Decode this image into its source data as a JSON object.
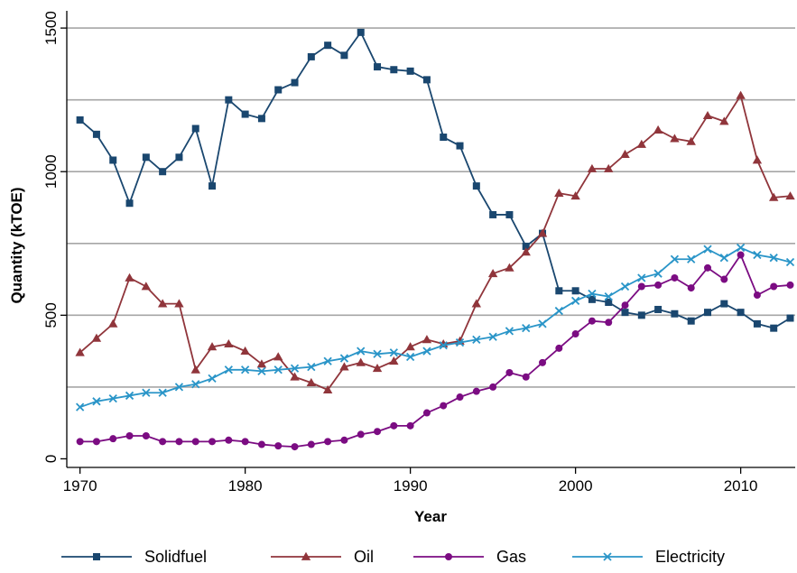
{
  "chart_data": {
    "type": "line",
    "title": "",
    "xlabel": "Year",
    "ylabel": "Quantity (kTOE)",
    "xlim": [
      1969.2,
      2013.3
    ],
    "ylim": [
      -30,
      1560
    ],
    "xticks": [
      1970,
      1980,
      1990,
      2000,
      2010
    ],
    "yticks": [
      0,
      500,
      1000,
      1500
    ],
    "gridlines_y": [
      250,
      500,
      750,
      1000,
      1250,
      1500
    ],
    "grid": true,
    "legend_position": "bottom",
    "x": [
      1970,
      1971,
      1972,
      1973,
      1974,
      1975,
      1976,
      1977,
      1978,
      1979,
      1980,
      1981,
      1982,
      1983,
      1984,
      1985,
      1986,
      1987,
      1988,
      1989,
      1990,
      1991,
      1992,
      1993,
      1994,
      1995,
      1996,
      1997,
      1998,
      1999,
      2000,
      2001,
      2002,
      2003,
      2004,
      2005,
      2006,
      2007,
      2008,
      2009,
      2010,
      2011,
      2012,
      2013
    ],
    "series": [
      {
        "name": "Solidfuel",
        "color": "#1a476f",
        "marker": "square",
        "values": [
          1180,
          1130,
          1040,
          890,
          1050,
          1000,
          1050,
          1150,
          950,
          1250,
          1200,
          1185,
          1285,
          1310,
          1400,
          1440,
          1405,
          1485,
          1365,
          1355,
          1350,
          1320,
          1120,
          1090,
          950,
          850,
          850,
          740,
          785,
          585,
          585,
          555,
          545,
          510,
          500,
          520,
          505,
          480,
          510,
          540,
          510,
          470,
          455,
          490
        ]
      },
      {
        "name": "Oil",
        "color": "#90353b",
        "marker": "triangle",
        "values": [
          370,
          420,
          470,
          630,
          600,
          540,
          540,
          310,
          390,
          400,
          375,
          330,
          355,
          285,
          265,
          240,
          320,
          335,
          315,
          340,
          390,
          415,
          400,
          410,
          540,
          645,
          665,
          720,
          785,
          925,
          915,
          1010,
          1010,
          1060,
          1095,
          1145,
          1115,
          1105,
          1195,
          1175,
          1265,
          1040,
          910,
          915
        ]
      },
      {
        "name": "Gas",
        "color": "#7b0c82",
        "marker": "circle",
        "values": [
          60,
          60,
          70,
          80,
          80,
          60,
          60,
          60,
          60,
          65,
          60,
          50,
          45,
          42,
          50,
          60,
          65,
          85,
          95,
          115,
          115,
          160,
          185,
          215,
          235,
          250,
          300,
          285,
          335,
          385,
          435,
          480,
          475,
          535,
          600,
          605,
          630,
          595,
          665,
          625,
          710,
          570,
          600,
          605
        ]
      },
      {
        "name": "Electricity",
        "color": "#2a95c8",
        "marker": "cross",
        "values": [
          180,
          200,
          210,
          220,
          230,
          230,
          250,
          260,
          280,
          310,
          310,
          305,
          310,
          315,
          320,
          340,
          350,
          375,
          365,
          370,
          355,
          375,
          395,
          405,
          415,
          425,
          445,
          455,
          470,
          515,
          550,
          575,
          565,
          600,
          630,
          645,
          695,
          695,
          730,
          700,
          735,
          710,
          700,
          685
        ]
      }
    ]
  }
}
